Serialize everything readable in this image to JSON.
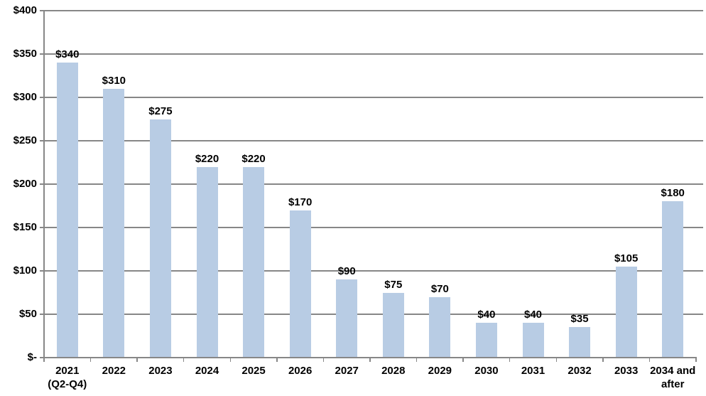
{
  "chart_data": {
    "type": "bar",
    "title": "",
    "xlabel": "",
    "ylabel": "",
    "categories": [
      "2021\n(Q2-Q4)",
      "2022",
      "2023",
      "2024",
      "2025",
      "2026",
      "2027",
      "2028",
      "2029",
      "2030",
      "2031",
      "2032",
      "2033",
      "2034 and\nafter"
    ],
    "values": [
      340,
      310,
      275,
      220,
      220,
      170,
      90,
      75,
      70,
      40,
      40,
      35,
      105,
      180
    ],
    "data_labels": [
      "$340",
      "$310",
      "$275",
      "$220",
      "$220",
      "$170",
      "$90",
      "$75",
      "$70",
      "$40",
      "$40",
      "$35",
      "$105",
      "$180"
    ],
    "y_ticks": [
      {
        "v": 400,
        "label": "$400"
      },
      {
        "v": 350,
        "label": "$350"
      },
      {
        "v": 300,
        "label": "$300"
      },
      {
        "v": 250,
        "label": "$250"
      },
      {
        "v": 200,
        "label": "$200"
      },
      {
        "v": 150,
        "label": "$150"
      },
      {
        "v": 100,
        "label": "$100"
      },
      {
        "v": 50,
        "label": "$50"
      },
      {
        "v": 0,
        "label": "$-"
      }
    ],
    "ylim": [
      0,
      400
    ],
    "grid": true,
    "legend": false,
    "colors": {
      "bar_fill": "#B8CCE4",
      "gridline": "#878787",
      "axis": "#878787",
      "text": "#000000",
      "background": "#FFFFFF"
    }
  }
}
